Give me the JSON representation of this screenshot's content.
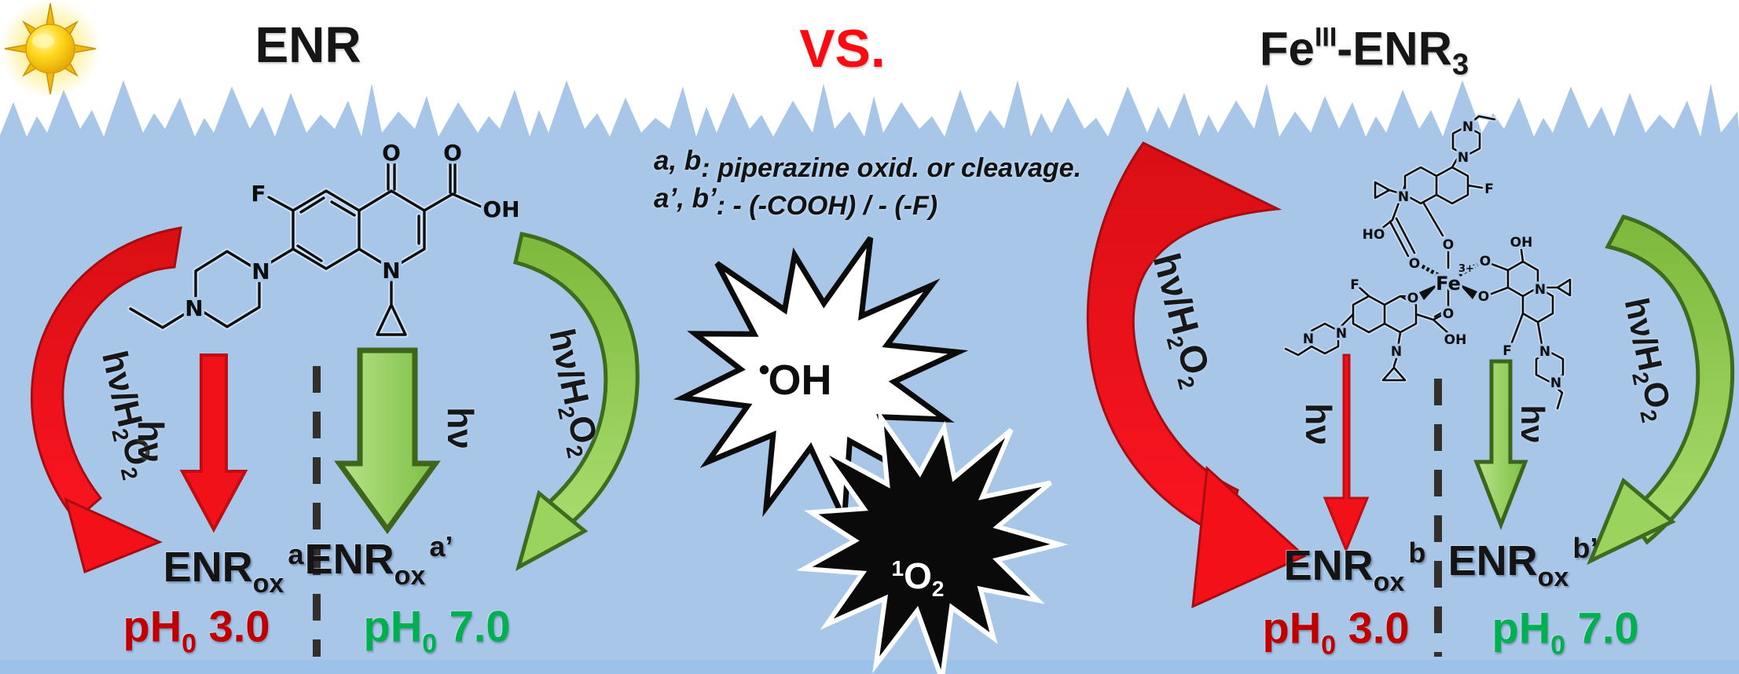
{
  "titles": {
    "left": "ENR",
    "vs": "VS.",
    "fe": {
      "base": "Fe",
      "sup": "III",
      "mid": "-ENR",
      "sub": "3"
    }
  },
  "annotation": {
    "line1": {
      "prefix": "a, b",
      "text": ": piperazine oxid. or cleavage."
    },
    "line2": {
      "prefix": "a’, b’",
      "text": ": - (-COOH) / - (-F)"
    }
  },
  "species": {
    "hydroxyl_radical": {
      "dot": "•",
      "formula": "OH"
    },
    "singlet_oxygen": {
      "sup": "1",
      "base": "O",
      "sub": "2"
    }
  },
  "arrow_labels": {
    "hv": "hν",
    "hv_h2o2": {
      "p1": "hν/H",
      "s1": "2",
      "p2": "O",
      "s2": "2"
    }
  },
  "products": {
    "enr_ox_a": {
      "base": "ENR",
      "sub": "ox",
      "sup": "a"
    },
    "enr_ox_a_prime": {
      "base": "ENR",
      "sub": "ox",
      "sup": "a’"
    },
    "enr_ox_b": {
      "base": "ENR",
      "sub": "ox",
      "sup": "b"
    },
    "enr_ox_b_prime": {
      "base": "ENR",
      "sub": "ox",
      "sup": "b’"
    }
  },
  "ph": {
    "acidic": {
      "base": "pH",
      "sub": "0",
      "value": "3.0"
    },
    "neutral": {
      "base": "pH",
      "sub": "0",
      "value": "7.0"
    }
  },
  "colors": {
    "water": "#a7c6e8",
    "red_arrow": "#ed161d",
    "green_arrow": "#8ec63f",
    "ph_red": "#c00000",
    "ph_green": "#00b050",
    "vs_red": "#fa0b12"
  },
  "molecules": {
    "enr": {
      "name": "enrofloxacin",
      "atoms": [
        "F",
        "O",
        "O",
        "OH",
        "N",
        "N",
        "N"
      ]
    },
    "fe_enr3": {
      "name": "iron(III) tris-enrofloxacin complex",
      "center": {
        "metal": "Fe",
        "charge": "3+"
      },
      "coordination_atoms": [
        "O",
        "O",
        "O",
        "O",
        "O",
        "O"
      ],
      "unit_top": [
        "HO",
        "N",
        "F",
        "N",
        "N"
      ],
      "unit_right": [
        "OH",
        "N",
        "F",
        "N",
        "N"
      ],
      "unit_bottom_left": [
        "F",
        "N",
        "N",
        "N",
        "OH"
      ]
    }
  }
}
